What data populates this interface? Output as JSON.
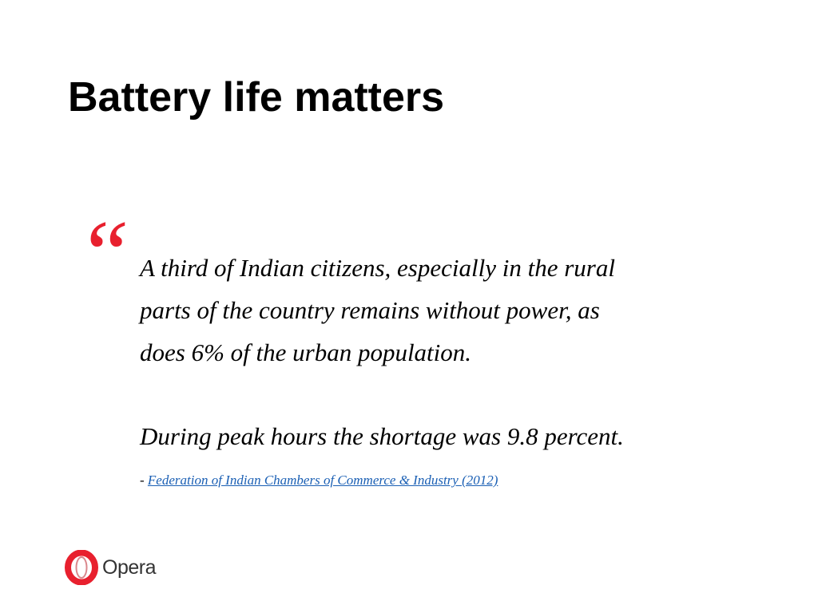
{
  "slide": {
    "title": "Battery life matters",
    "quote_mark": "“",
    "quote_lines": [
      "A third of Indian citizens, especially in the rural",
      "parts of the country remains without power, as",
      "does 6% of the urban population."
    ],
    "quote_second": "During peak hours the shortage was 9.8 percent.",
    "attribution_dash": "-",
    "attribution_link": "Federation of Indian Chambers of Commerce & Industry (2012)",
    "logo_text": "Opera"
  }
}
